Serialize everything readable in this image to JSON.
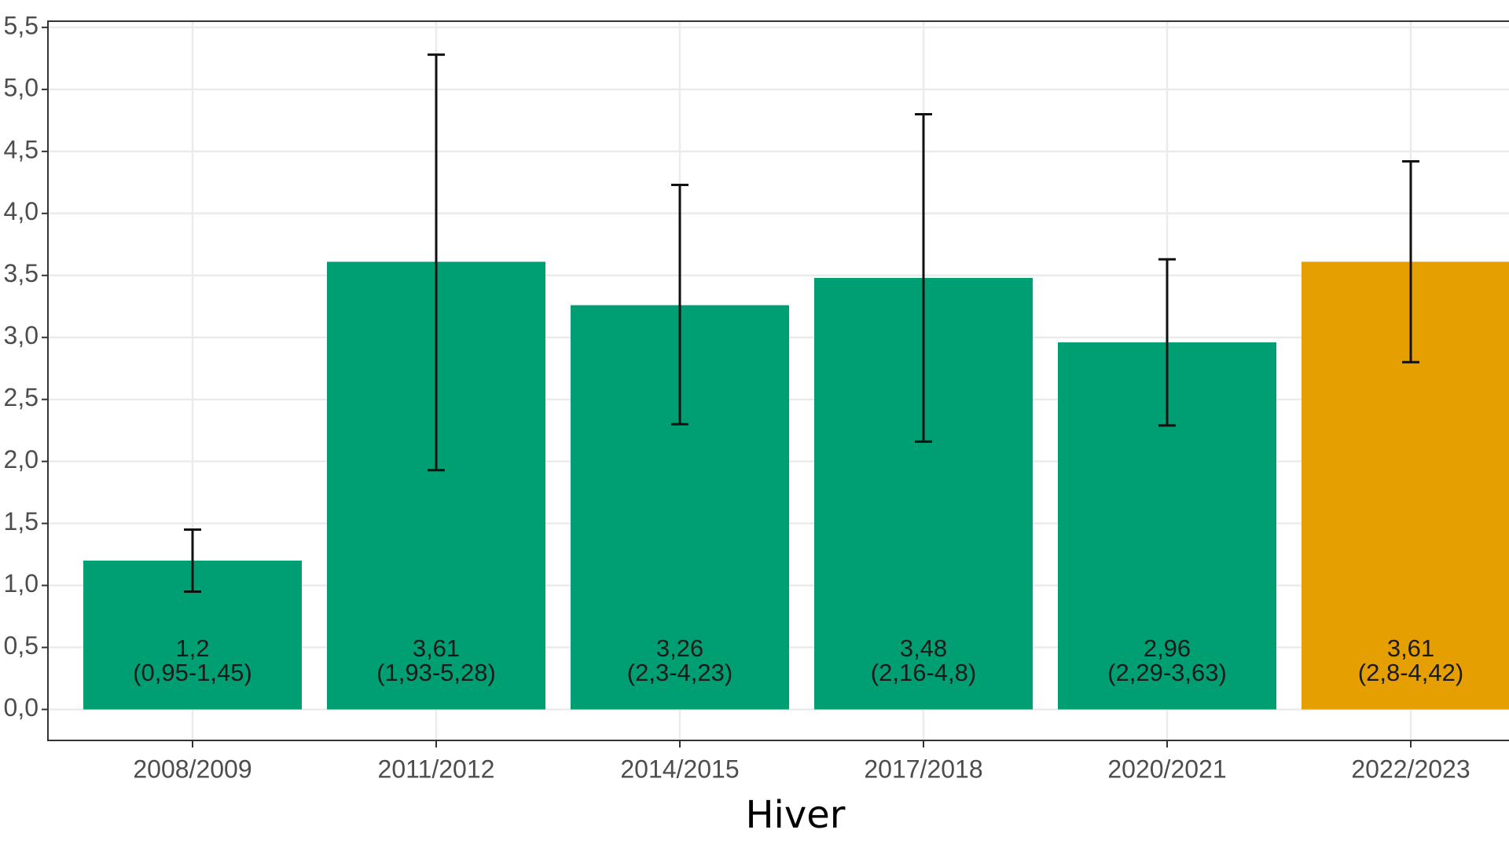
{
  "chart_data": {
    "type": "bar",
    "x_label": "Hiver",
    "categories": [
      "2008/2009",
      "2011/2012",
      "2014/2015",
      "2017/2018",
      "2020/2021",
      "2022/2023"
    ],
    "series": [
      {
        "colors": [
          "#009e73",
          "#009e73",
          "#009e73",
          "#009e73",
          "#009e73",
          "#e69f00"
        ],
        "values": [
          1.2,
          3.61,
          3.26,
          3.48,
          2.96,
          3.61
        ],
        "value_labels": [
          "1,2",
          "3,61",
          "3,26",
          "3,48",
          "2,96",
          "3,61"
        ],
        "lower": [
          0.95,
          1.93,
          2.3,
          2.16,
          2.29,
          2.8
        ],
        "upper": [
          1.45,
          5.28,
          4.23,
          4.8,
          3.63,
          4.42
        ],
        "interval_labels": [
          "(0,95-1,45)",
          "(1,93-5,28)",
          "(2,3-4,23)",
          "(2,16-4,8)",
          "(2,29-3,63)",
          "(2,8-4,42)"
        ]
      }
    ],
    "ylim": [
      -0.25,
      5.55
    ],
    "yticks": [
      {
        "value": 0,
        "label": "0,0"
      },
      {
        "value": 0.5,
        "label": "0,5"
      },
      {
        "value": 1,
        "label": "1,0"
      },
      {
        "value": 1.5,
        "label": "1,5"
      },
      {
        "value": 2,
        "label": "2,0"
      },
      {
        "value": 2.5,
        "label": "2,5"
      },
      {
        "value": 3,
        "label": "3,0"
      },
      {
        "value": 3.5,
        "label": "3,5"
      },
      {
        "value": 4,
        "label": "4,0"
      },
      {
        "value": 4.5,
        "label": "4,5"
      },
      {
        "value": 5,
        "label": "5,0"
      },
      {
        "value": 5.5,
        "label": "5,5"
      }
    ],
    "grid": true
  }
}
